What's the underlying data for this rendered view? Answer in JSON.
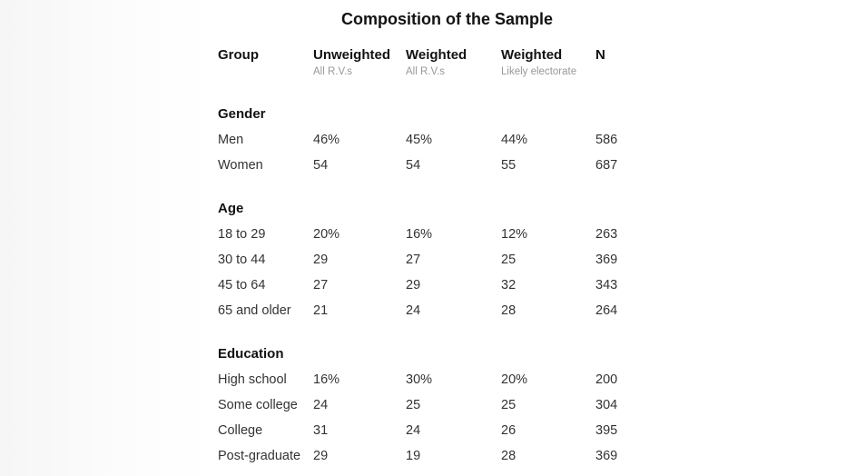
{
  "colors": {
    "heading_text": "#121212",
    "data_text": "#333333",
    "muted_text": "#989898",
    "background": "#ffffff"
  },
  "chart_data": {
    "type": "table",
    "title": "Composition of the Sample",
    "columns": [
      {
        "label": "Group",
        "sublabel": ""
      },
      {
        "label": "Unweighted",
        "sublabel": "All R.V.s"
      },
      {
        "label": "Weighted",
        "sublabel": "All R.V.s"
      },
      {
        "label": "Weighted",
        "sublabel": "Likely electorate"
      },
      {
        "label": "N",
        "sublabel": ""
      }
    ],
    "sections": [
      {
        "heading": "Gender",
        "rows": [
          {
            "group": "Men",
            "values": [
              "46%",
              "45%",
              "44%",
              "586"
            ]
          },
          {
            "group": "Women",
            "values": [
              "54",
              "54",
              "55",
              "687"
            ]
          }
        ]
      },
      {
        "heading": "Age",
        "rows": [
          {
            "group": "18 to 29",
            "values": [
              "20%",
              "16%",
              "12%",
              "263"
            ]
          },
          {
            "group": "30 to 44",
            "values": [
              "29",
              "27",
              "25",
              "369"
            ]
          },
          {
            "group": "45 to 64",
            "values": [
              "27",
              "29",
              "32",
              "343"
            ]
          },
          {
            "group": "65 and older",
            "values": [
              "21",
              "24",
              "28",
              "264"
            ]
          }
        ]
      },
      {
        "heading": "Education",
        "rows": [
          {
            "group": "High school",
            "values": [
              "16%",
              "30%",
              "20%",
              "200"
            ]
          },
          {
            "group": "Some college",
            "values": [
              "24",
              "25",
              "25",
              "304"
            ]
          },
          {
            "group": "College",
            "values": [
              "31",
              "24",
              "26",
              "395"
            ]
          },
          {
            "group": "Post-graduate",
            "values": [
              "29",
              "19",
              "28",
              "369"
            ]
          }
        ]
      }
    ]
  }
}
